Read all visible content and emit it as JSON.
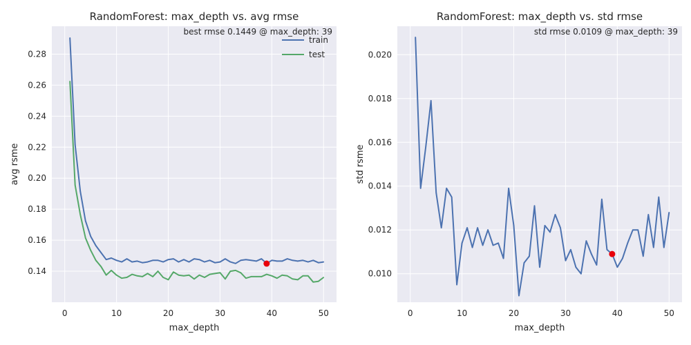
{
  "chart_data": [
    {
      "type": "line",
      "title": "RandomForest: max_depth vs. avg rmse",
      "xlabel": "max_depth",
      "ylabel": "avg rsme",
      "xlim": [
        -2.5,
        52.5
      ],
      "ylim": [
        0.12,
        0.298
      ],
      "xticks": [
        0,
        10,
        20,
        30,
        40,
        50
      ],
      "yticks": [
        0.14,
        0.16,
        0.18,
        0.2,
        0.22,
        0.24,
        0.26,
        0.28
      ],
      "ytick_labels": [
        "0.14",
        "0.16",
        "0.18",
        "0.20",
        "0.22",
        "0.24",
        "0.26",
        "0.28"
      ],
      "grid": true,
      "legend": "top-right",
      "annotation": "best rmse 0.1449 @ max_depth: 39",
      "marker": {
        "x": 39,
        "y": 0.1449,
        "color": "#e8000b"
      },
      "x": [
        1,
        2,
        3,
        4,
        5,
        6,
        7,
        8,
        9,
        10,
        11,
        12,
        13,
        14,
        15,
        16,
        17,
        18,
        19,
        20,
        21,
        22,
        23,
        24,
        25,
        26,
        27,
        28,
        29,
        30,
        31,
        32,
        33,
        34,
        35,
        36,
        37,
        38,
        39,
        40,
        41,
        42,
        43,
        44,
        45,
        46,
        47,
        48,
        49,
        50
      ],
      "series": [
        {
          "name": "train",
          "color": "#4c72b0",
          "values": [
            0.2905,
            0.2215,
            0.1915,
            0.1725,
            0.1625,
            0.1565,
            0.152,
            0.1475,
            0.1485,
            0.147,
            0.146,
            0.148,
            0.146,
            0.1465,
            0.1455,
            0.146,
            0.147,
            0.147,
            0.146,
            0.1475,
            0.148,
            0.146,
            0.1475,
            0.146,
            0.148,
            0.1475,
            0.146,
            0.147,
            0.1455,
            0.146,
            0.148,
            0.146,
            0.145,
            0.147,
            0.1475,
            0.147,
            0.1465,
            0.148,
            0.145,
            0.147,
            0.1465,
            0.1465,
            0.148,
            0.147,
            0.1465,
            0.147,
            0.146,
            0.147,
            0.1455,
            0.146
          ]
        },
        {
          "name": "test",
          "color": "#55a868",
          "values": [
            0.2625,
            0.1955,
            0.1765,
            0.1615,
            0.1535,
            0.147,
            0.143,
            0.1375,
            0.1405,
            0.1375,
            0.1355,
            0.136,
            0.138,
            0.137,
            0.1365,
            0.1385,
            0.1365,
            0.14,
            0.136,
            0.1345,
            0.1395,
            0.1375,
            0.137,
            0.1375,
            0.135,
            0.1375,
            0.136,
            0.138,
            0.1385,
            0.139,
            0.135,
            0.14,
            0.1405,
            0.139,
            0.1355,
            0.1365,
            0.1365,
            0.1365,
            0.138,
            0.137,
            0.1355,
            0.1375,
            0.137,
            0.135,
            0.1345,
            0.137,
            0.137,
            0.133,
            0.1335,
            0.136
          ]
        }
      ]
    },
    {
      "type": "line",
      "title": "RandomForest: max_depth vs. std rmse",
      "xlabel": "max_depth",
      "ylabel": "std rsme",
      "xlim": [
        -2.5,
        52.5
      ],
      "ylim": [
        0.0087,
        0.0213
      ],
      "xticks": [
        0,
        10,
        20,
        30,
        40,
        50
      ],
      "yticks": [
        0.01,
        0.012,
        0.014,
        0.016,
        0.018,
        0.02
      ],
      "ytick_labels": [
        "0.010",
        "0.012",
        "0.014",
        "0.016",
        "0.018",
        "0.020"
      ],
      "grid": true,
      "annotation": "std rmse 0.0109 @ max_depth: 39",
      "marker": {
        "x": 39,
        "y": 0.0109,
        "color": "#e8000b"
      },
      "x": [
        1,
        2,
        3,
        4,
        5,
        6,
        7,
        8,
        9,
        10,
        11,
        12,
        13,
        14,
        15,
        16,
        17,
        18,
        19,
        20,
        21,
        22,
        23,
        24,
        25,
        26,
        27,
        28,
        29,
        30,
        31,
        32,
        33,
        34,
        35,
        36,
        37,
        38,
        39,
        40,
        41,
        42,
        43,
        44,
        45,
        46,
        47,
        48,
        49,
        50
      ],
      "series": [
        {
          "color": "#4c72b0",
          "values": [
            0.0208,
            0.0139,
            0.0158,
            0.0179,
            0.0137,
            0.0121,
            0.0139,
            0.0135,
            0.0095,
            0.0114,
            0.0121,
            0.0112,
            0.0121,
            0.0113,
            0.012,
            0.0113,
            0.0114,
            0.0107,
            0.0139,
            0.0122,
            0.009,
            0.0105,
            0.0108,
            0.0131,
            0.0103,
            0.0122,
            0.0119,
            0.0127,
            0.0121,
            0.0106,
            0.0111,
            0.0103,
            0.01,
            0.0115,
            0.0109,
            0.0104,
            0.0134,
            0.0111,
            0.0109,
            0.0103,
            0.0107,
            0.0114,
            0.012,
            0.012,
            0.0108,
            0.0127,
            0.0112,
            0.0135,
            0.0112,
            0.0128
          ]
        }
      ]
    }
  ]
}
